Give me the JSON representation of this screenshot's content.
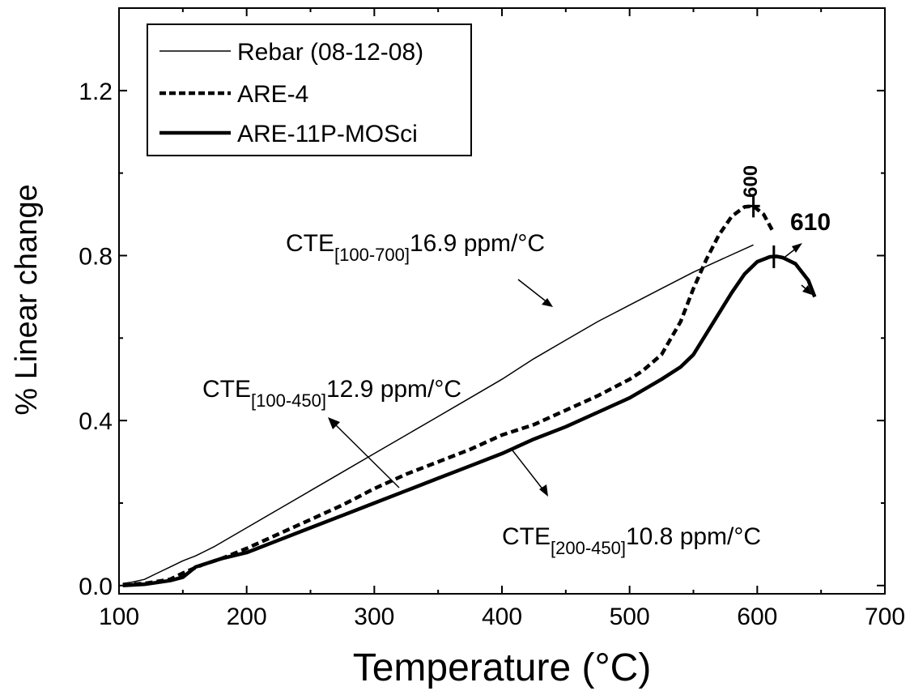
{
  "chart_data": {
    "type": "line",
    "xlabel": "Temperature (°C)",
    "ylabel": "% Linear change",
    "xlim": [
      100,
      700
    ],
    "ylim": [
      -0.02,
      1.4
    ],
    "x_ticks": [
      "100",
      "200",
      "300",
      "400",
      "500",
      "600",
      "700"
    ],
    "y_ticks": [
      "0.0",
      "0.4",
      "0.8",
      "1.2"
    ],
    "legend_position": "top-left",
    "series": [
      {
        "name": "Rebar (08-12-08)",
        "style": "thin",
        "x": [
          103,
          110,
          120,
          130,
          140,
          150,
          160,
          175,
          200,
          225,
          250,
          275,
          300,
          325,
          350,
          375,
          400,
          425,
          450,
          475,
          500,
          525,
          550,
          575,
          597
        ],
        "y": [
          0.005,
          0.008,
          0.015,
          0.03,
          0.045,
          0.06,
          0.072,
          0.095,
          0.14,
          0.185,
          0.23,
          0.275,
          0.32,
          0.365,
          0.41,
          0.455,
          0.5,
          0.55,
          0.595,
          0.64,
          0.68,
          0.72,
          0.76,
          0.795,
          0.826
        ]
      },
      {
        "name": "ARE-4",
        "style": "dashed",
        "x": [
          103,
          120,
          140,
          150,
          165,
          180,
          200,
          225,
          250,
          275,
          300,
          325,
          350,
          375,
          400,
          425,
          450,
          475,
          500,
          510,
          525,
          540,
          550,
          560,
          570,
          580,
          590,
          597,
          605,
          612
        ],
        "y": [
          0.002,
          0.005,
          0.015,
          0.03,
          0.05,
          0.065,
          0.09,
          0.125,
          0.16,
          0.195,
          0.235,
          0.27,
          0.3,
          0.33,
          0.365,
          0.39,
          0.425,
          0.46,
          0.5,
          0.52,
          0.56,
          0.64,
          0.72,
          0.79,
          0.85,
          0.895,
          0.918,
          0.92,
          0.9,
          0.86
        ]
      },
      {
        "name": "ARE-11P-MOSci",
        "style": "thick",
        "x": [
          103,
          120,
          140,
          150,
          160,
          180,
          200,
          225,
          250,
          275,
          300,
          325,
          350,
          375,
          400,
          425,
          450,
          475,
          500,
          525,
          540,
          550,
          560,
          570,
          580,
          590,
          600,
          610,
          615,
          620,
          630,
          640,
          645
        ],
        "y": [
          0.0,
          0.003,
          0.012,
          0.02,
          0.045,
          0.065,
          0.08,
          0.11,
          0.14,
          0.17,
          0.2,
          0.23,
          0.26,
          0.29,
          0.32,
          0.355,
          0.385,
          0.42,
          0.455,
          0.5,
          0.53,
          0.56,
          0.61,
          0.66,
          0.71,
          0.755,
          0.785,
          0.797,
          0.798,
          0.795,
          0.78,
          0.74,
          0.7
        ]
      }
    ],
    "annotations": [
      {
        "id": "cte_rebar",
        "prefix": "CTE",
        "subscript": "[100-700]",
        "value": "16.9 ppm/°C"
      },
      {
        "id": "cte_are4",
        "prefix": "CTE",
        "subscript": "[100-450]",
        "value": "12.9 ppm/°C"
      },
      {
        "id": "cte_are11",
        "prefix": "CTE",
        "subscript": "[200-450]",
        "value": "10.8 ppm/°C"
      }
    ],
    "peak_labels": [
      {
        "label": "600",
        "x": 597,
        "y": 0.92
      },
      {
        "label": "610",
        "x": 613,
        "y": 0.797
      }
    ]
  }
}
